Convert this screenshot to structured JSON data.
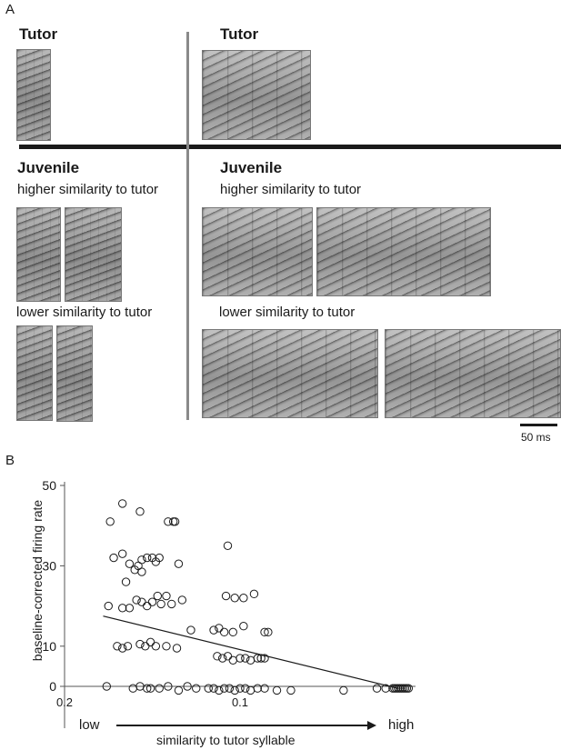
{
  "panel_a": {
    "letter": "A",
    "tutor_label_left": "Tutor",
    "tutor_label_right": "Tutor",
    "juvenile_label_left": "Juvenile",
    "juvenile_label_right": "Juvenile",
    "higher_left": "higher similarity to tutor",
    "higher_right": "higher similarity to tutor",
    "lower_left": "lower similarity to tutor",
    "lower_right": "lower similarity to tutor",
    "scale_label": "50 ms"
  },
  "panel_b": {
    "letter": "B",
    "low_label": "low",
    "high_label": "high",
    "arrow_label": "similarity to tutor syllable"
  },
  "chart_data": {
    "type": "scatter",
    "title": "",
    "xlabel": "similarity to tutor syllable",
    "ylabel": "baseline-corrected firing rate",
    "x_direction": "reversed",
    "x_ticks": [
      0.2,
      0.1
    ],
    "x_tick_labels": [
      "0.2",
      "0.1"
    ],
    "y_ticks": [
      0,
      10,
      30,
      50
    ],
    "y_tick_labels": [
      "0",
      "10",
      "30",
      "50"
    ],
    "xlim": [
      0.2,
      0.0
    ],
    "ylim": [
      0,
      50
    ],
    "grid": false,
    "marker": "open-circle",
    "series": [
      {
        "points": [
          [
            0.174,
            41
          ],
          [
            0.167,
            45.5
          ],
          [
            0.157,
            43.5
          ],
          [
            0.141,
            41
          ],
          [
            0.138,
            41
          ],
          [
            0.137,
            41
          ],
          [
            0.172,
            32
          ],
          [
            0.167,
            33
          ],
          [
            0.163,
            30.5
          ],
          [
            0.158,
            30
          ],
          [
            0.156,
            31.5
          ],
          [
            0.153,
            32
          ],
          [
            0.15,
            32
          ],
          [
            0.148,
            31
          ],
          [
            0.146,
            32
          ],
          [
            0.135,
            30.5
          ],
          [
            0.165,
            26
          ],
          [
            0.16,
            29
          ],
          [
            0.156,
            28.5
          ],
          [
            0.175,
            20
          ],
          [
            0.167,
            19.5
          ],
          [
            0.163,
            19.5
          ],
          [
            0.159,
            21.5
          ],
          [
            0.156,
            21
          ],
          [
            0.153,
            20
          ],
          [
            0.15,
            21
          ],
          [
            0.147,
            22.5
          ],
          [
            0.145,
            20.5
          ],
          [
            0.142,
            22.5
          ],
          [
            0.139,
            20.5
          ],
          [
            0.133,
            21.5
          ],
          [
            0.17,
            10
          ],
          [
            0.167,
            9.5
          ],
          [
            0.164,
            10
          ],
          [
            0.157,
            10.5
          ],
          [
            0.154,
            10
          ],
          [
            0.151,
            11
          ],
          [
            0.148,
            10
          ],
          [
            0.142,
            10
          ],
          [
            0.136,
            9.5
          ],
          [
            0.176,
            0
          ],
          [
            0.161,
            -0.5
          ],
          [
            0.157,
            0
          ],
          [
            0.153,
            -0.5
          ],
          [
            0.151,
            -0.5
          ],
          [
            0.146,
            -0.5
          ],
          [
            0.141,
            0
          ],
          [
            0.135,
            -1
          ],
          [
            0.13,
            0
          ],
          [
            0.125,
            -0.5
          ],
          [
            0.107,
            35
          ],
          [
            0.108,
            22.5
          ],
          [
            0.103,
            22
          ],
          [
            0.098,
            22
          ],
          [
            0.092,
            23
          ],
          [
            0.128,
            14
          ],
          [
            0.115,
            14
          ],
          [
            0.112,
            14.5
          ],
          [
            0.109,
            13.5
          ],
          [
            0.104,
            13.5
          ],
          [
            0.098,
            15
          ],
          [
            0.086,
            13.5
          ],
          [
            0.084,
            13.5
          ],
          [
            0.113,
            7.5
          ],
          [
            0.11,
            7
          ],
          [
            0.107,
            7.5
          ],
          [
            0.104,
            6.5
          ],
          [
            0.1,
            7
          ],
          [
            0.097,
            7
          ],
          [
            0.094,
            6.5
          ],
          [
            0.09,
            7
          ],
          [
            0.088,
            7
          ],
          [
            0.086,
            7
          ],
          [
            0.118,
            -0.5
          ],
          [
            0.115,
            -0.5
          ],
          [
            0.112,
            -1
          ],
          [
            0.109,
            -0.5
          ],
          [
            0.106,
            -0.5
          ],
          [
            0.103,
            -1
          ],
          [
            0.1,
            -0.5
          ],
          [
            0.097,
            -0.5
          ],
          [
            0.094,
            -1
          ],
          [
            0.09,
            -0.5
          ],
          [
            0.086,
            -0.5
          ],
          [
            0.079,
            -1
          ],
          [
            0.071,
            -1
          ],
          [
            0.041,
            -1
          ],
          [
            0.022,
            -0.5
          ],
          [
            0.017,
            -0.5
          ],
          [
            0.013,
            -0.5
          ],
          [
            0.012,
            -0.5
          ],
          [
            0.011,
            -0.5
          ],
          [
            0.01,
            -0.5
          ],
          [
            0.009,
            -0.5
          ],
          [
            0.008,
            -0.5
          ],
          [
            0.007,
            -0.5
          ],
          [
            0.006,
            -0.5
          ],
          [
            0.005,
            -0.5
          ],
          [
            0.004,
            -0.5
          ]
        ]
      }
    ],
    "trend_line": {
      "x": [
        0.178,
        0.01
      ],
      "y": [
        17.5,
        -0.5
      ]
    }
  }
}
